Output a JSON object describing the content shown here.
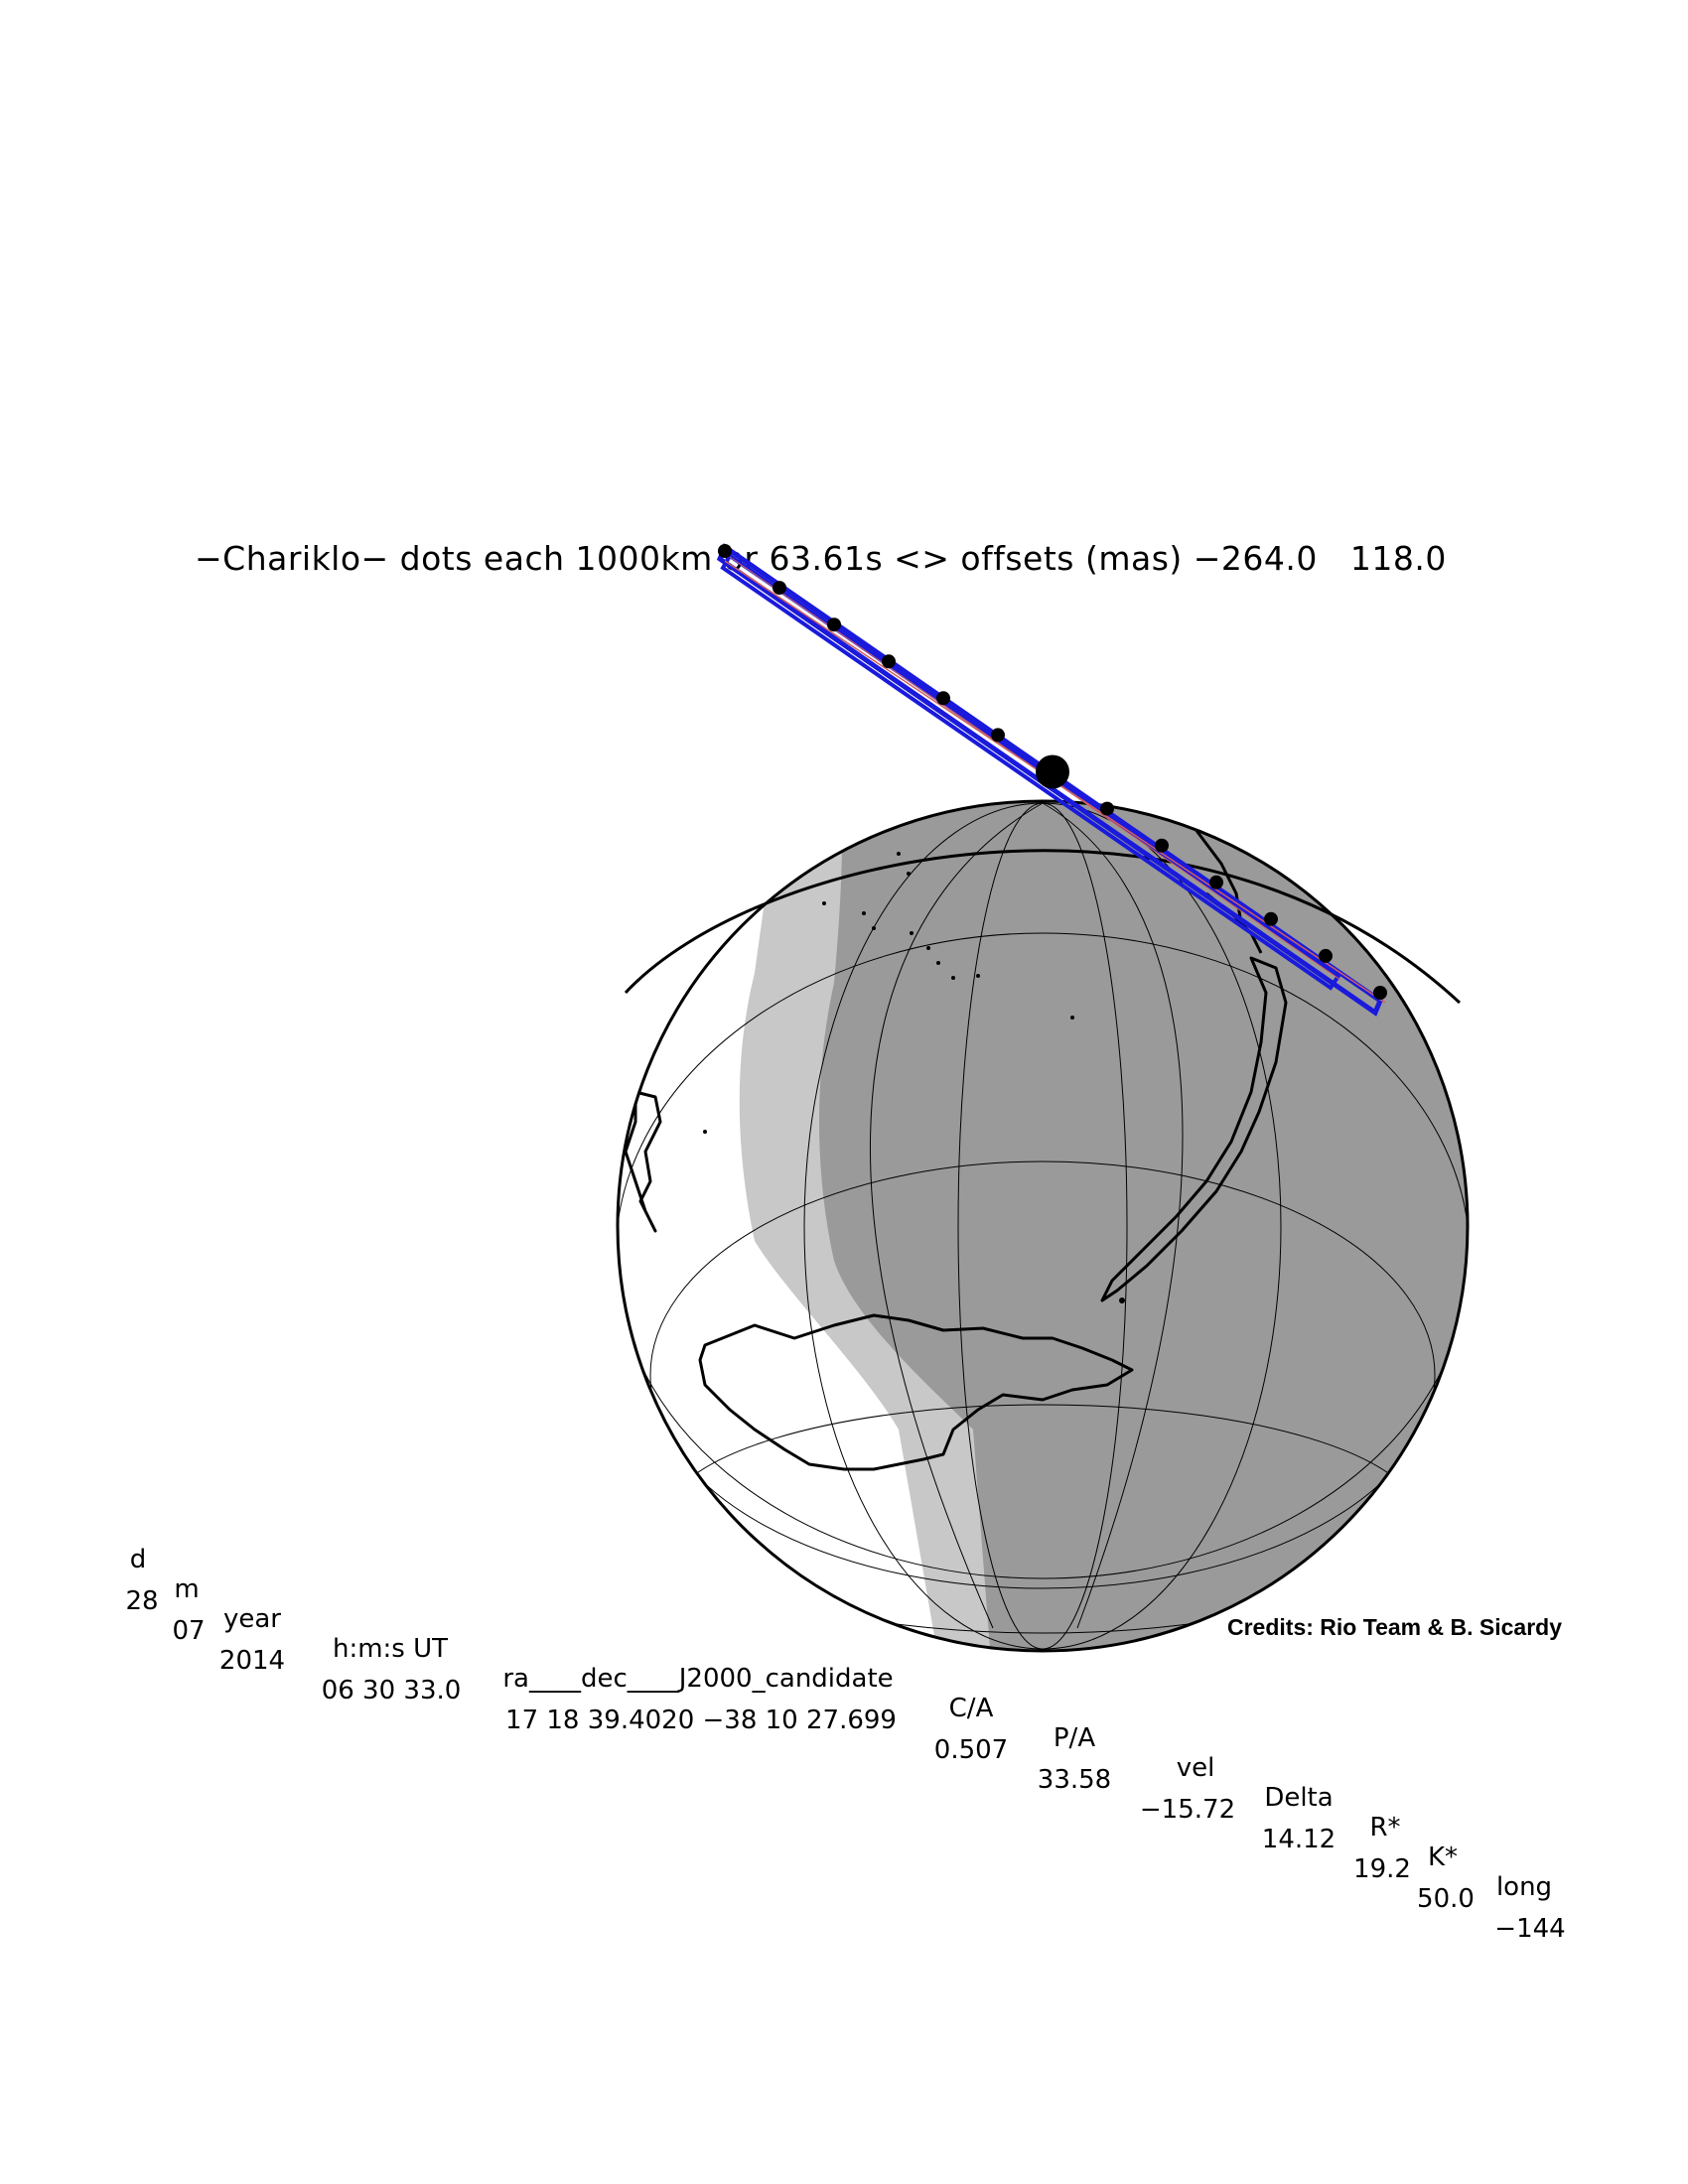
{
  "title": "−Chariklo− dots each 1000km or 63.61s <> offsets (mas) −264.0   118.0",
  "colors": {
    "night_shade": "#9a9a9a",
    "twilight_shade": "#c8c8c8",
    "land_outline": "#000000",
    "track_outline": "#1a1adc",
    "central_line": "#d06060",
    "dot": "#000000"
  },
  "map": {
    "projection": "orthographic",
    "track_dots_count": 13,
    "closest_approach_marker": "large-dot"
  },
  "table": {
    "headers": [
      {
        "key": "d",
        "label": "d"
      },
      {
        "key": "m",
        "label": "m"
      },
      {
        "key": "year",
        "label": "year"
      },
      {
        "key": "hms",
        "label": "h:m:s UT"
      },
      {
        "key": "radec",
        "label": "ra____dec____J2000_candidate"
      },
      {
        "key": "ca",
        "label": "C/A"
      },
      {
        "key": "pa",
        "label": "P/A"
      },
      {
        "key": "vel",
        "label": "vel"
      },
      {
        "key": "delta",
        "label": "Delta"
      },
      {
        "key": "rstar",
        "label": "R*"
      },
      {
        "key": "kstar",
        "label": "K*"
      },
      {
        "key": "long",
        "label": "long"
      }
    ],
    "values": {
      "d": "28",
      "m": "07",
      "year": "2014",
      "hms": "06 30 33.0",
      "radec": "17 18 39.4020 −38 10 27.699",
      "ca": "0.507",
      "pa": "33.58",
      "vel": "−15.72",
      "delta": "14.12",
      "rstar": "19.2",
      "kstar": "50.0",
      "long": "−144"
    }
  },
  "credits": "Credits: Rio Team & B. Sicardy"
}
